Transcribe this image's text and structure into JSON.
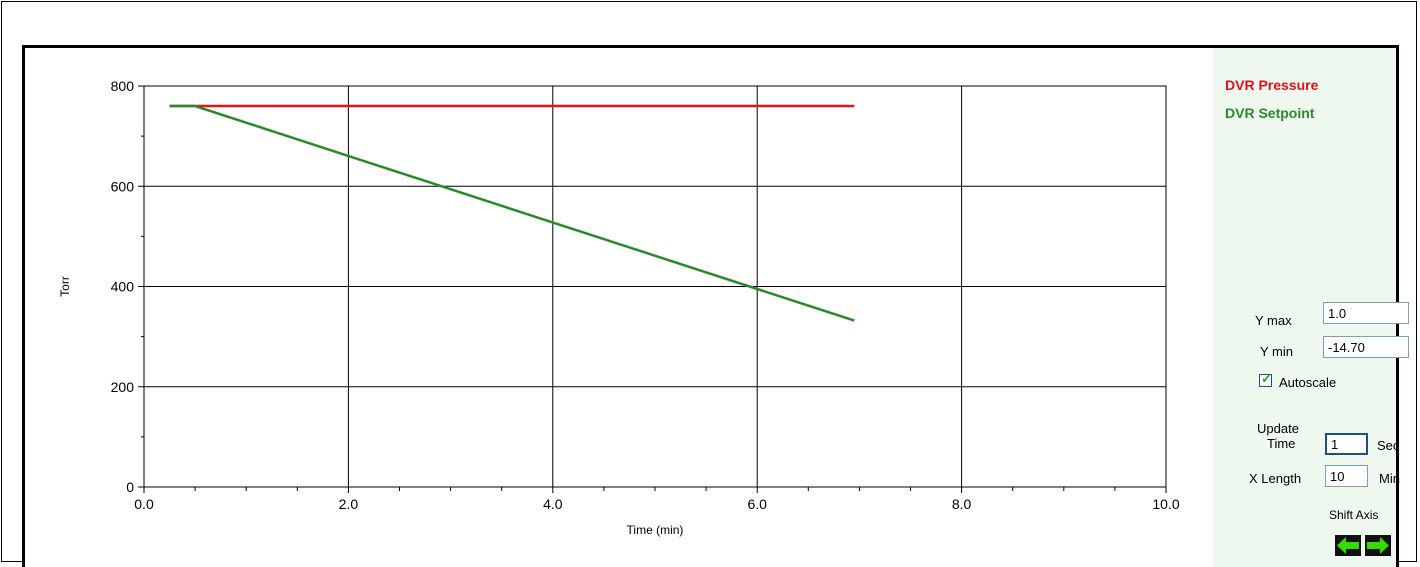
{
  "legend": {
    "series1": "DVR Pressure",
    "series2": "DVR Setpoint"
  },
  "controls": {
    "ymax_label": "Y max",
    "ymax_value": "1.0",
    "ymin_label": "Y min",
    "ymin_value": "-14.70",
    "autoscale_label": "Autoscale",
    "autoscale_checked": true,
    "update_label_line1": "Update",
    "update_label_line2": "Time",
    "update_value": "1",
    "update_unit": "Sec",
    "xlength_label": "X Length",
    "xlength_value": "10",
    "xlength_unit": "Min",
    "shift_axis_label": "Shift Axis",
    "shift_left_icon": "arrow-left-icon",
    "shift_right_icon": "arrow-right-icon"
  },
  "colors": {
    "pressure": "#e8101c",
    "setpoint": "#2a8a2a",
    "side_panel": "#eef8ee",
    "arrow_fill": "#33dd00"
  },
  "chart_data": {
    "type": "line",
    "xlabel": "Time (min)",
    "ylabel": "Torr",
    "xlim": [
      0,
      10
    ],
    "ylim": [
      0,
      800
    ],
    "x_ticks": [
      "0.0",
      "2.0",
      "4.0",
      "6.0",
      "8.0",
      "10.0"
    ],
    "y_ticks": [
      "0",
      "200",
      "400",
      "600",
      "800"
    ],
    "grid": true,
    "legend_position": "top-right",
    "series": [
      {
        "name": "DVR Pressure",
        "x": [
          0.25,
          6.95
        ],
        "y": [
          760,
          760
        ]
      },
      {
        "name": "DVR Setpoint",
        "x": [
          0.25,
          0.5,
          6.95
        ],
        "y": [
          760,
          760,
          332
        ]
      }
    ]
  }
}
